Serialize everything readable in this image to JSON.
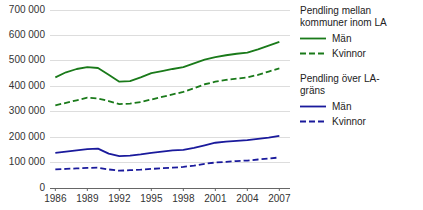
{
  "chart_data": {
    "type": "line",
    "x": [
      1986,
      1987,
      1988,
      1989,
      1990,
      1991,
      1992,
      1993,
      1994,
      1995,
      1996,
      1997,
      1998,
      1999,
      2000,
      2001,
      2002,
      2003,
      2004,
      2005,
      2006,
      2007
    ],
    "series": [
      {
        "name": "Män",
        "color": "#1a7a1a",
        "line_style": "solid",
        "values": [
          435000,
          455000,
          468000,
          475000,
          472000,
          445000,
          418000,
          420000,
          435000,
          452000,
          460000,
          468000,
          475000,
          490000,
          505000,
          515000,
          522000,
          528000,
          532000,
          545000,
          560000,
          575000
        ]
      },
      {
        "name": "Kvinnor",
        "color": "#1a7a1a",
        "line_style": "dashed",
        "values": [
          325000,
          335000,
          345000,
          355000,
          352000,
          342000,
          330000,
          332000,
          338000,
          348000,
          358000,
          368000,
          378000,
          392000,
          408000,
          418000,
          425000,
          430000,
          435000,
          445000,
          458000,
          470000
        ]
      },
      {
        "name": "Män",
        "color": "#1a1a9c",
        "line_style": "solid",
        "values": [
          138000,
          143000,
          148000,
          153000,
          155000,
          135000,
          125000,
          127000,
          132000,
          138000,
          143000,
          148000,
          150000,
          158000,
          168000,
          178000,
          182000,
          185000,
          188000,
          193000,
          198000,
          205000
        ]
      },
      {
        "name": "Kvinnor",
        "color": "#1a1a9c",
        "line_style": "dashed",
        "values": [
          73000,
          75000,
          77000,
          79000,
          80000,
          73000,
          68000,
          70000,
          72000,
          75000,
          78000,
          80000,
          83000,
          88000,
          95000,
          100000,
          103000,
          106000,
          108000,
          112000,
          116000,
          120000
        ]
      }
    ],
    "annotations": [
      "Pendling mellan\nkommuner inom LA",
      "Pendling över LA-\ngräns"
    ],
    "xlim": [
      1985.5,
      2008.0
    ],
    "xticks": [
      1986,
      1989,
      1992,
      1995,
      1998,
      2001,
      2004,
      2007
    ],
    "ylim": [
      0,
      700000
    ],
    "yticks": [
      0,
      {
        "value": 100000,
        "label": "100 000"
      },
      {
        "value": 200000,
        "label": "200 000"
      },
      {
        "value": 300000,
        "label": "300 000"
      },
      {
        "value": 400000,
        "label": "400 000"
      },
      {
        "value": 500000,
        "label": "500 000"
      },
      {
        "value": 600000,
        "label": "600 000"
      },
      {
        "value": 700000,
        "label": "700 000"
      }
    ],
    "grid": true,
    "legend": "right"
  }
}
